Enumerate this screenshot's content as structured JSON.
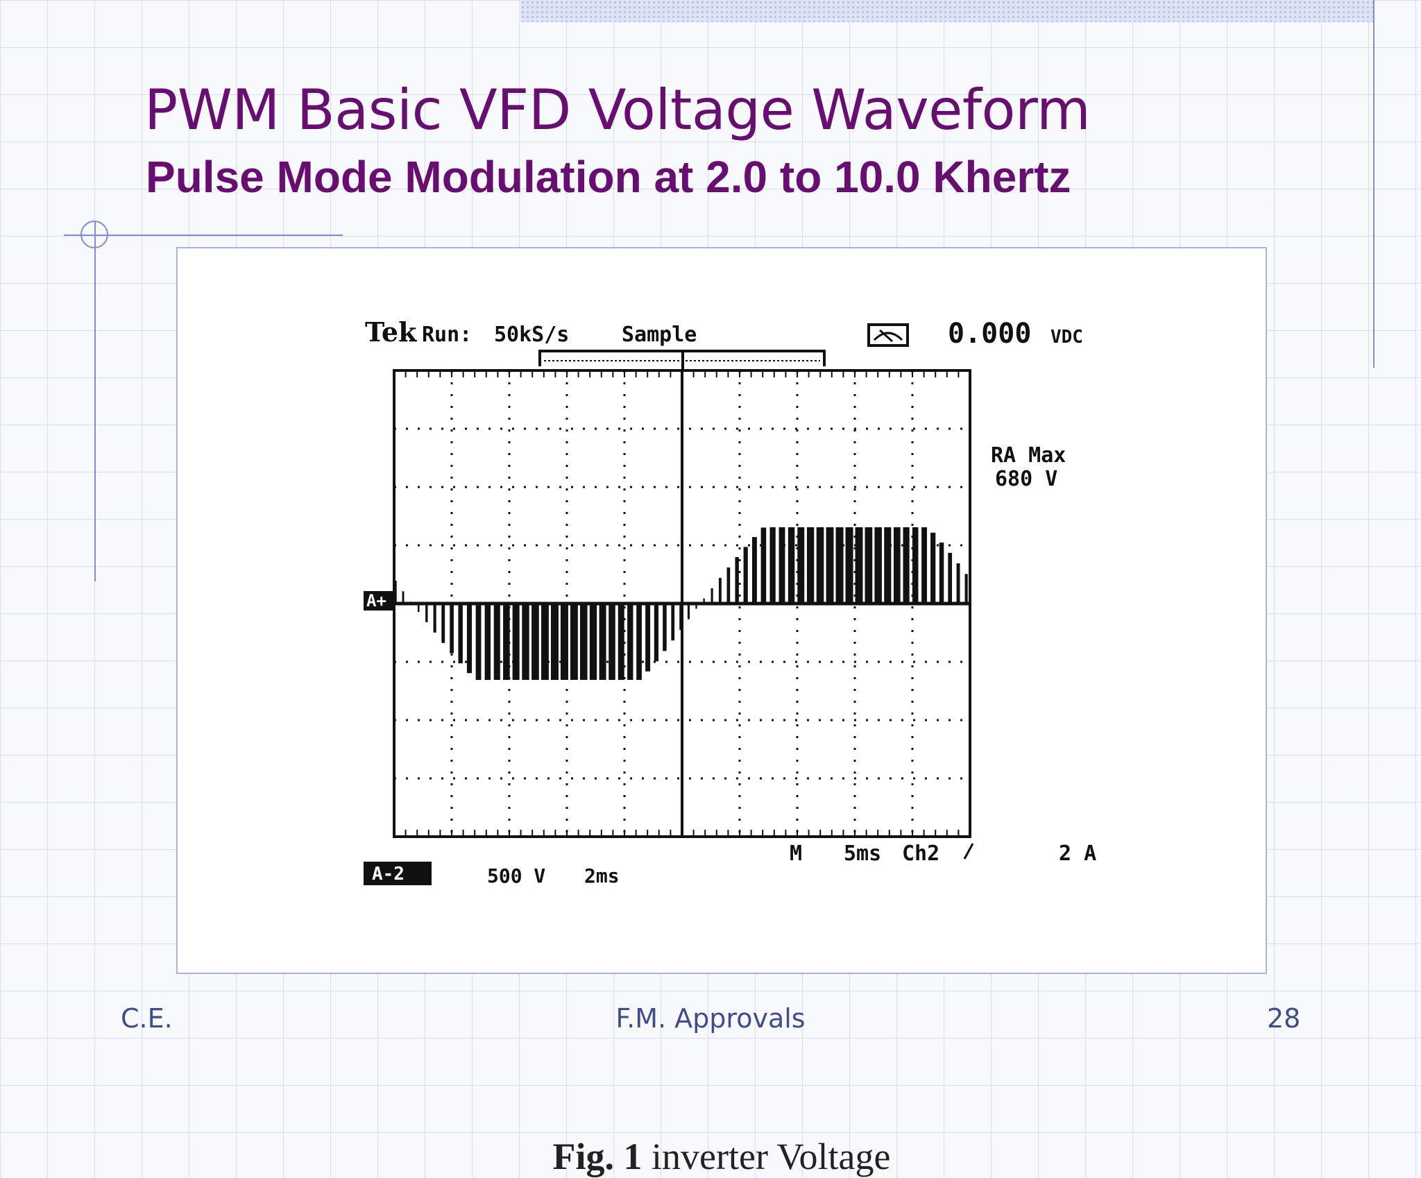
{
  "slide": {
    "title": "PWM Basic VFD Voltage Waveform",
    "subtitle": "Pulse Mode Modulation at 2.0 to 10.0 Khertz"
  },
  "scope": {
    "brand": "Tek",
    "run_label": "Run:",
    "sample_rate": "50kS/s",
    "mode": "Sample",
    "readout": "0.000",
    "readout_unit": "VDC",
    "measure_label": "RA Max",
    "measure_value": "680 V",
    "channel_marker": "A+",
    "channel_badge": "A-2",
    "volts_per_div": "500 V",
    "time_per_div_ch": "2ms",
    "timebase_prefix": "M",
    "timebase": "5ms",
    "trigger": "Ch2",
    "trigger_level": "2 A"
  },
  "figure": {
    "caption_fig": "Fig. 1",
    "caption_text": "inverter Voltage"
  },
  "footer": {
    "left": "C.E.",
    "center": "F.M. Approvals",
    "page": "28"
  }
}
